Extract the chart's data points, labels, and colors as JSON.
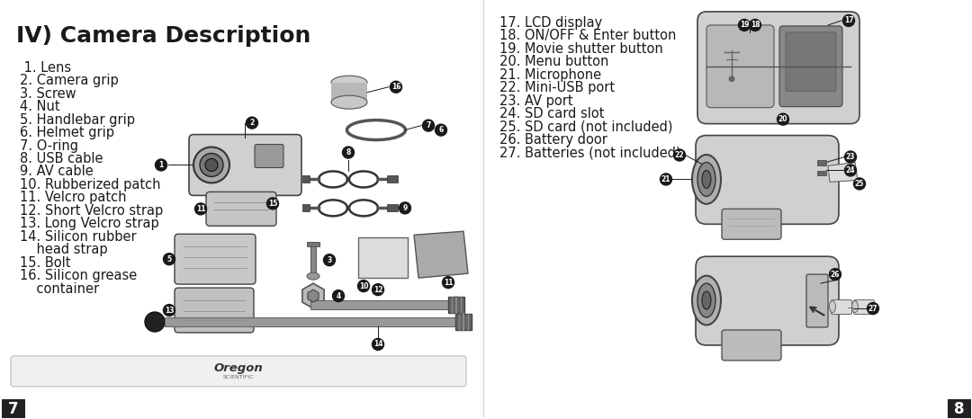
{
  "title": "IV) Camera Description",
  "left_list": [
    " 1. Lens",
    "2. Camera grip",
    "3. Screw",
    "4. Nut",
    "5. Handlebar grip",
    "6. Helmet grip",
    "7. O-ring",
    "8. USB cable",
    "9. AV cable",
    "10. Rubberized patch",
    "11. Velcro patch",
    "12. Short Velcro strap",
    "13. Long Velcro strap",
    "14. Silicon rubber",
    "    head strap",
    "15. Bolt",
    "16. Silicon grease",
    "    container"
  ],
  "right_list": [
    "17. LCD display",
    "18. ON/OFF & Enter button",
    "19. Movie shutter button",
    "20. Menu button",
    "21. Microphone",
    "22. Mini-USB port",
    "23. AV port",
    "24. SD card slot",
    "25. SD card (not included)",
    "26. Battery door",
    "27. Batteries (not included)"
  ],
  "page_left": "7",
  "page_right": "8",
  "brand": "Oregon",
  "brand_sub": "SCIENTIFIC",
  "bg_color": "#ffffff",
  "text_color": "#1a1a1a",
  "title_fontsize": 18,
  "list_fontsize": 10.5,
  "page_num_fontsize": 12
}
